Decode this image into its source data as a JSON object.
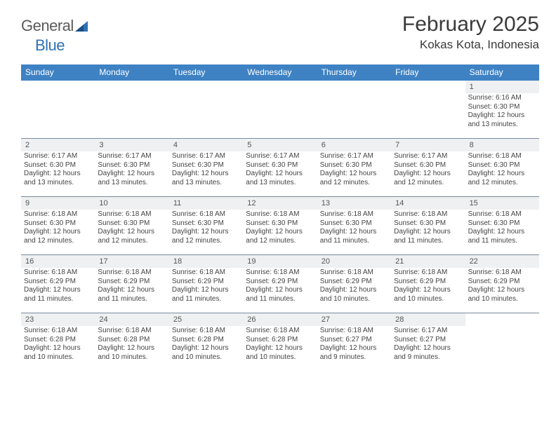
{
  "logo": {
    "word1": "General",
    "word2": "Blue"
  },
  "header": {
    "month": "February 2025",
    "location": "Kokas Kota, Indonesia"
  },
  "colors": {
    "header_bar": "#3e82c4",
    "daynum_bg": "#eef0f2",
    "week_divider": "#7a8a9a",
    "text": "#333333",
    "logo_gray": "#5a5a5a",
    "logo_blue": "#2d72b5"
  },
  "daynames": [
    "Sunday",
    "Monday",
    "Tuesday",
    "Wednesday",
    "Thursday",
    "Friday",
    "Saturday"
  ],
  "weeks": [
    [
      {
        "n": "",
        "blank": true
      },
      {
        "n": "",
        "blank": true
      },
      {
        "n": "",
        "blank": true
      },
      {
        "n": "",
        "blank": true
      },
      {
        "n": "",
        "blank": true
      },
      {
        "n": "",
        "blank": true
      },
      {
        "n": "1",
        "sr": "6:16 AM",
        "ss": "6:30 PM",
        "dl": "12 hours and 13 minutes."
      }
    ],
    [
      {
        "n": "2",
        "sr": "6:17 AM",
        "ss": "6:30 PM",
        "dl": "12 hours and 13 minutes."
      },
      {
        "n": "3",
        "sr": "6:17 AM",
        "ss": "6:30 PM",
        "dl": "12 hours and 13 minutes."
      },
      {
        "n": "4",
        "sr": "6:17 AM",
        "ss": "6:30 PM",
        "dl": "12 hours and 13 minutes."
      },
      {
        "n": "5",
        "sr": "6:17 AM",
        "ss": "6:30 PM",
        "dl": "12 hours and 13 minutes."
      },
      {
        "n": "6",
        "sr": "6:17 AM",
        "ss": "6:30 PM",
        "dl": "12 hours and 12 minutes."
      },
      {
        "n": "7",
        "sr": "6:17 AM",
        "ss": "6:30 PM",
        "dl": "12 hours and 12 minutes."
      },
      {
        "n": "8",
        "sr": "6:18 AM",
        "ss": "6:30 PM",
        "dl": "12 hours and 12 minutes."
      }
    ],
    [
      {
        "n": "9",
        "sr": "6:18 AM",
        "ss": "6:30 PM",
        "dl": "12 hours and 12 minutes."
      },
      {
        "n": "10",
        "sr": "6:18 AM",
        "ss": "6:30 PM",
        "dl": "12 hours and 12 minutes."
      },
      {
        "n": "11",
        "sr": "6:18 AM",
        "ss": "6:30 PM",
        "dl": "12 hours and 12 minutes."
      },
      {
        "n": "12",
        "sr": "6:18 AM",
        "ss": "6:30 PM",
        "dl": "12 hours and 12 minutes."
      },
      {
        "n": "13",
        "sr": "6:18 AM",
        "ss": "6:30 PM",
        "dl": "12 hours and 11 minutes."
      },
      {
        "n": "14",
        "sr": "6:18 AM",
        "ss": "6:30 PM",
        "dl": "12 hours and 11 minutes."
      },
      {
        "n": "15",
        "sr": "6:18 AM",
        "ss": "6:30 PM",
        "dl": "12 hours and 11 minutes."
      }
    ],
    [
      {
        "n": "16",
        "sr": "6:18 AM",
        "ss": "6:29 PM",
        "dl": "12 hours and 11 minutes."
      },
      {
        "n": "17",
        "sr": "6:18 AM",
        "ss": "6:29 PM",
        "dl": "12 hours and 11 minutes."
      },
      {
        "n": "18",
        "sr": "6:18 AM",
        "ss": "6:29 PM",
        "dl": "12 hours and 11 minutes."
      },
      {
        "n": "19",
        "sr": "6:18 AM",
        "ss": "6:29 PM",
        "dl": "12 hours and 11 minutes."
      },
      {
        "n": "20",
        "sr": "6:18 AM",
        "ss": "6:29 PM",
        "dl": "12 hours and 10 minutes."
      },
      {
        "n": "21",
        "sr": "6:18 AM",
        "ss": "6:29 PM",
        "dl": "12 hours and 10 minutes."
      },
      {
        "n": "22",
        "sr": "6:18 AM",
        "ss": "6:29 PM",
        "dl": "12 hours and 10 minutes."
      }
    ],
    [
      {
        "n": "23",
        "sr": "6:18 AM",
        "ss": "6:28 PM",
        "dl": "12 hours and 10 minutes."
      },
      {
        "n": "24",
        "sr": "6:18 AM",
        "ss": "6:28 PM",
        "dl": "12 hours and 10 minutes."
      },
      {
        "n": "25",
        "sr": "6:18 AM",
        "ss": "6:28 PM",
        "dl": "12 hours and 10 minutes."
      },
      {
        "n": "26",
        "sr": "6:18 AM",
        "ss": "6:28 PM",
        "dl": "12 hours and 10 minutes."
      },
      {
        "n": "27",
        "sr": "6:18 AM",
        "ss": "6:27 PM",
        "dl": "12 hours and 9 minutes."
      },
      {
        "n": "28",
        "sr": "6:17 AM",
        "ss": "6:27 PM",
        "dl": "12 hours and 9 minutes."
      },
      {
        "n": "",
        "blank": true
      }
    ]
  ],
  "labels": {
    "sunrise": "Sunrise:",
    "sunset": "Sunset:",
    "daylight": "Daylight:"
  }
}
